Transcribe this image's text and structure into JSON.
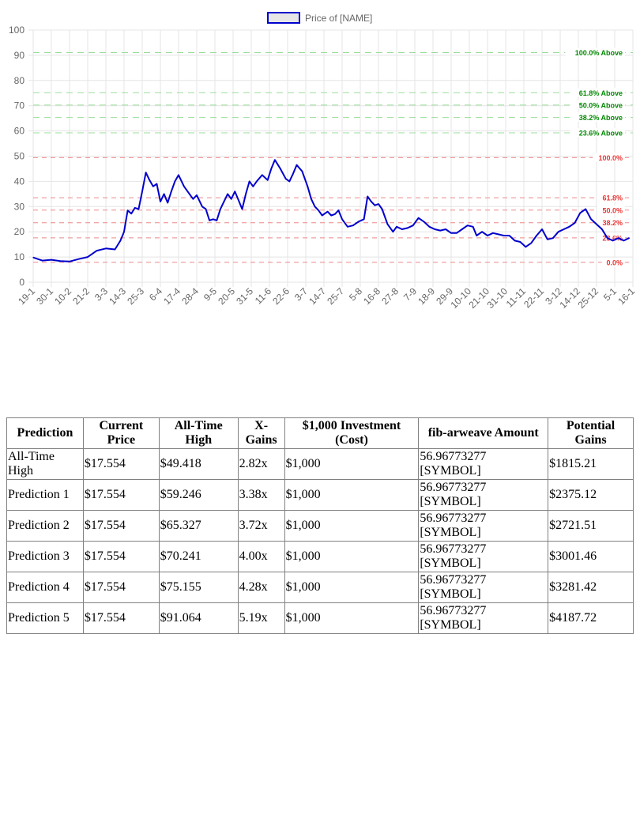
{
  "chart_data": {
    "type": "line",
    "legend": "Price of [NAME]",
    "legend_position": "top-center",
    "ylim": [
      0,
      100
    ],
    "yticks": [
      0,
      10,
      20,
      30,
      40,
      50,
      60,
      70,
      80,
      90,
      100
    ],
    "xticks": [
      "19-1",
      "30-1",
      "10-2",
      "21-2",
      "3-3",
      "14-3",
      "25-3",
      "6-4",
      "17-4",
      "28-4",
      "9-5",
      "20-5",
      "31-5",
      "11-6",
      "22-6",
      "3-7",
      "14-7",
      "25-7",
      "5-8",
      "16-8",
      "27-8",
      "7-9",
      "18-9",
      "29-9",
      "10-10",
      "21-10",
      "31-10",
      "11-11",
      "22-11",
      "3-12",
      "14-12",
      "25-12",
      "5-1",
      "16-1"
    ],
    "series": [
      {
        "name": "Price of [NAME]",
        "color": "#0000cc",
        "points": [
          [
            0,
            9.8
          ],
          [
            0.5,
            8.6
          ],
          [
            1,
            8.9
          ],
          [
            1.5,
            8.4
          ],
          [
            2,
            8.2
          ],
          [
            2.5,
            9.2
          ],
          [
            3,
            10
          ],
          [
            3.5,
            12.5
          ],
          [
            4,
            13.4
          ],
          [
            4.5,
            13
          ],
          [
            4.8,
            16.5
          ],
          [
            5,
            20
          ],
          [
            5.2,
            28.5
          ],
          [
            5.4,
            27.2
          ],
          [
            5.6,
            29.5
          ],
          [
            5.8,
            29
          ],
          [
            6,
            36
          ],
          [
            6.2,
            43.5
          ],
          [
            6.4,
            40.5
          ],
          [
            6.6,
            38
          ],
          [
            6.8,
            39
          ],
          [
            7,
            32
          ],
          [
            7.2,
            35
          ],
          [
            7.4,
            31.5
          ],
          [
            7.6,
            36
          ],
          [
            7.8,
            40
          ],
          [
            8,
            42.5
          ],
          [
            8.3,
            38
          ],
          [
            8.6,
            35
          ],
          [
            8.8,
            33
          ],
          [
            9,
            34.5
          ],
          [
            9.3,
            30
          ],
          [
            9.5,
            29
          ],
          [
            9.7,
            24.5
          ],
          [
            9.9,
            25
          ],
          [
            10.1,
            24.5
          ],
          [
            10.3,
            29
          ],
          [
            10.5,
            32
          ],
          [
            10.7,
            35
          ],
          [
            10.9,
            33
          ],
          [
            11.1,
            36
          ],
          [
            11.3,
            32.5
          ],
          [
            11.5,
            29
          ],
          [
            11.7,
            35
          ],
          [
            11.9,
            40
          ],
          [
            12.1,
            38
          ],
          [
            12.3,
            40
          ],
          [
            12.6,
            42.5
          ],
          [
            12.9,
            40.5
          ],
          [
            13.1,
            45
          ],
          [
            13.3,
            48.5
          ],
          [
            13.6,
            45
          ],
          [
            13.9,
            41
          ],
          [
            14.1,
            40
          ],
          [
            14.3,
            43
          ],
          [
            14.5,
            46.5
          ],
          [
            14.8,
            44
          ],
          [
            15.1,
            38
          ],
          [
            15.3,
            33
          ],
          [
            15.5,
            30
          ],
          [
            15.7,
            28.5
          ],
          [
            15.9,
            26.5
          ],
          [
            16.2,
            28
          ],
          [
            16.4,
            26.5
          ],
          [
            16.6,
            27
          ],
          [
            16.8,
            28.5
          ],
          [
            17,
            25
          ],
          [
            17.3,
            22
          ],
          [
            17.6,
            22.5
          ],
          [
            17.9,
            24
          ],
          [
            18.2,
            25
          ],
          [
            18.4,
            34
          ],
          [
            18.6,
            32
          ],
          [
            18.8,
            30.5
          ],
          [
            19,
            31
          ],
          [
            19.2,
            29
          ],
          [
            19.5,
            23
          ],
          [
            19.8,
            20
          ],
          [
            20,
            22
          ],
          [
            20.3,
            21
          ],
          [
            20.6,
            21.5
          ],
          [
            20.9,
            22.5
          ],
          [
            21.2,
            25.5
          ],
          [
            21.5,
            24
          ],
          [
            21.8,
            22
          ],
          [
            22.1,
            21
          ],
          [
            22.4,
            20.5
          ],
          [
            22.7,
            21
          ],
          [
            23,
            19.5
          ],
          [
            23.3,
            19.5
          ],
          [
            23.6,
            21
          ],
          [
            23.9,
            22.5
          ],
          [
            24.2,
            22
          ],
          [
            24.4,
            18.5
          ],
          [
            24.7,
            20
          ],
          [
            25,
            18.5
          ],
          [
            25.3,
            19.5
          ],
          [
            25.6,
            19
          ],
          [
            25.9,
            18.5
          ],
          [
            26.2,
            18.5
          ],
          [
            26.5,
            16.5
          ],
          [
            26.8,
            16
          ],
          [
            27.1,
            14
          ],
          [
            27.4,
            15.5
          ],
          [
            27.7,
            18.5
          ],
          [
            28,
            21
          ],
          [
            28.3,
            17
          ],
          [
            28.6,
            17.5
          ],
          [
            28.9,
            20
          ],
          [
            29.2,
            21
          ],
          [
            29.5,
            22
          ],
          [
            29.8,
            23.5
          ],
          [
            30.1,
            27.5
          ],
          [
            30.4,
            29
          ],
          [
            30.7,
            25
          ],
          [
            31,
            23
          ],
          [
            31.3,
            21
          ],
          [
            31.6,
            17.5
          ],
          [
            31.9,
            16.5
          ],
          [
            32.2,
            17.5
          ],
          [
            32.5,
            16.5
          ],
          [
            32.8,
            17.554
          ]
        ]
      }
    ],
    "fib_above": [
      {
        "label": "100.0% Above",
        "value": 91.064
      },
      {
        "label": "61.8% Above",
        "value": 75.155
      },
      {
        "label": "50.0% Above",
        "value": 70.241
      },
      {
        "label": "38.2% Above",
        "value": 65.327
      },
      {
        "label": "23.6% Above",
        "value": 59.246
      }
    ],
    "fib_retracement": [
      {
        "label": "100.0%",
        "value": 49.418
      },
      {
        "label": "61.8%",
        "value": 33.5
      },
      {
        "label": "50.0%",
        "value": 28.6
      },
      {
        "label": "38.2%",
        "value": 23.6
      },
      {
        "label": "23.6%",
        "value": 17.6
      },
      {
        "label": "0.0%",
        "value": 7.9
      }
    ],
    "colors": {
      "line": "#0000cc",
      "above": "#22aa22",
      "above_label": "#008800",
      "retracement": "#ee3333",
      "grid": "#e5e5e5",
      "legend_fill": "#e6e6e6"
    }
  },
  "table": {
    "headers": [
      "Prediction",
      "Current Price",
      "All-Time High",
      "X-Gains",
      "$1,000 Investment (Cost)",
      "fib-arweave Amount",
      "Potential Gains"
    ],
    "rows": [
      [
        "All-Time High",
        "$17.554",
        "$49.418",
        "2.82x",
        "$1,000",
        "56.96773277 [SYMBOL]",
        "$1815.21"
      ],
      [
        "Prediction 1",
        "$17.554",
        "$59.246",
        "3.38x",
        "$1,000",
        "56.96773277 [SYMBOL]",
        "$2375.12"
      ],
      [
        "Prediction 2",
        "$17.554",
        "$65.327",
        "3.72x",
        "$1,000",
        "56.96773277 [SYMBOL]",
        "$2721.51"
      ],
      [
        "Prediction 3",
        "$17.554",
        "$70.241",
        "4.00x",
        "$1,000",
        "56.96773277 [SYMBOL]",
        "$3001.46"
      ],
      [
        "Prediction 4",
        "$17.554",
        "$75.155",
        "4.28x",
        "$1,000",
        "56.96773277 [SYMBOL]",
        "$3281.42"
      ],
      [
        "Prediction 5",
        "$17.554",
        "$91.064",
        "5.19x",
        "$1,000",
        "56.96773277 [SYMBOL]",
        "$4187.72"
      ]
    ]
  }
}
